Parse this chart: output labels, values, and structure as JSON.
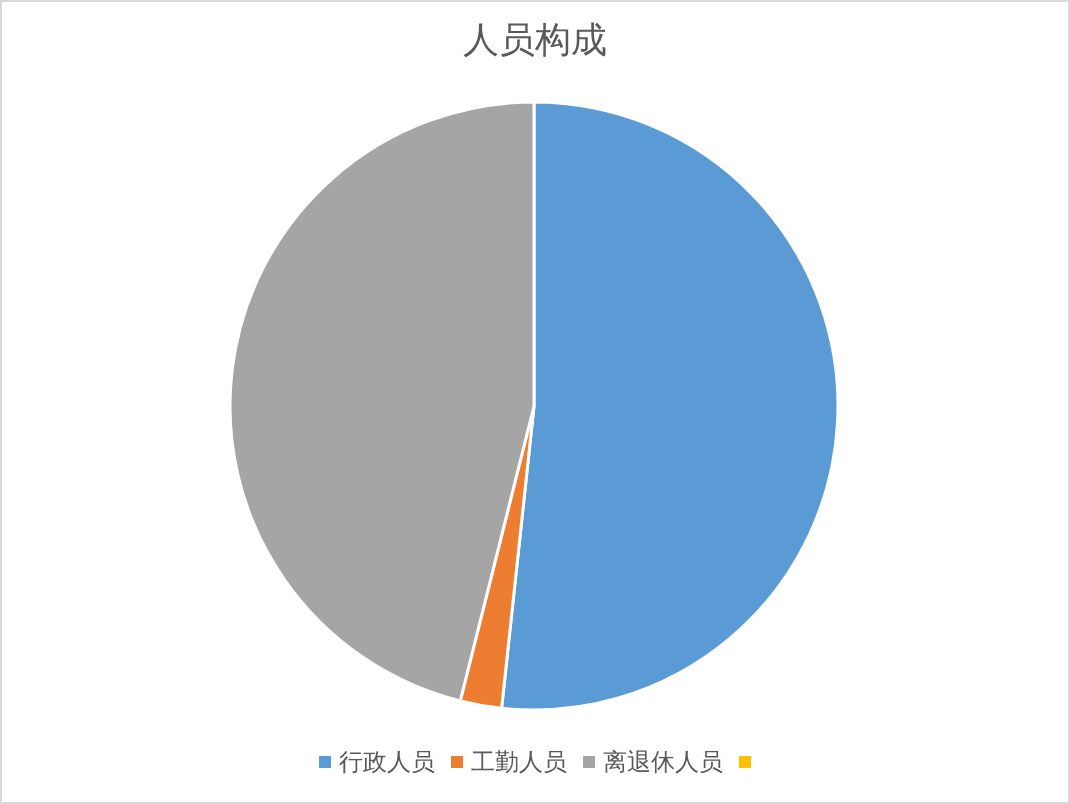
{
  "chart_data": {
    "type": "pie",
    "title": "人员构成",
    "categories": [
      "行政人员",
      "工勤人员",
      "离退休人员",
      null
    ],
    "values": [
      51.7,
      2.2,
      46.1,
      0
    ],
    "colors": [
      "#5b9bd5",
      "#ed7d31",
      "#a5a5a5",
      "#ffc000"
    ],
    "legend": "bottom"
  }
}
